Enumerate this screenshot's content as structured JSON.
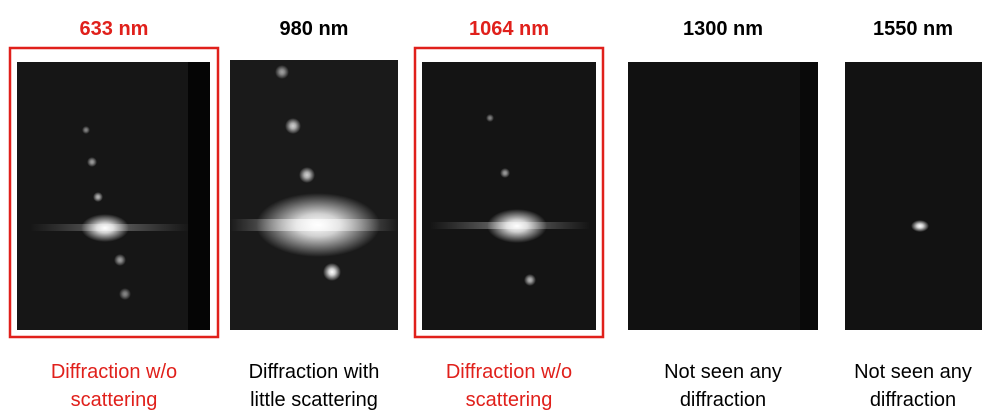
{
  "panels": [
    {
      "wavelength": "633 nm",
      "caption": [
        "Diffraction w/o",
        "scattering"
      ],
      "highlight": true
    },
    {
      "wavelength": "980 nm",
      "caption": [
        "Diffraction with",
        "little scattering"
      ],
      "highlight": false
    },
    {
      "wavelength": "1064 nm",
      "caption": [
        "Diffraction w/o",
        "scattering"
      ],
      "highlight": true
    },
    {
      "wavelength": "1300 nm",
      "caption": [
        "Not seen any",
        "diffraction"
      ],
      "highlight": false
    },
    {
      "wavelength": "1550 nm",
      "caption": [
        "Not seen any",
        "diffraction"
      ],
      "highlight": false
    }
  ],
  "highlight_color": "#e0201b"
}
